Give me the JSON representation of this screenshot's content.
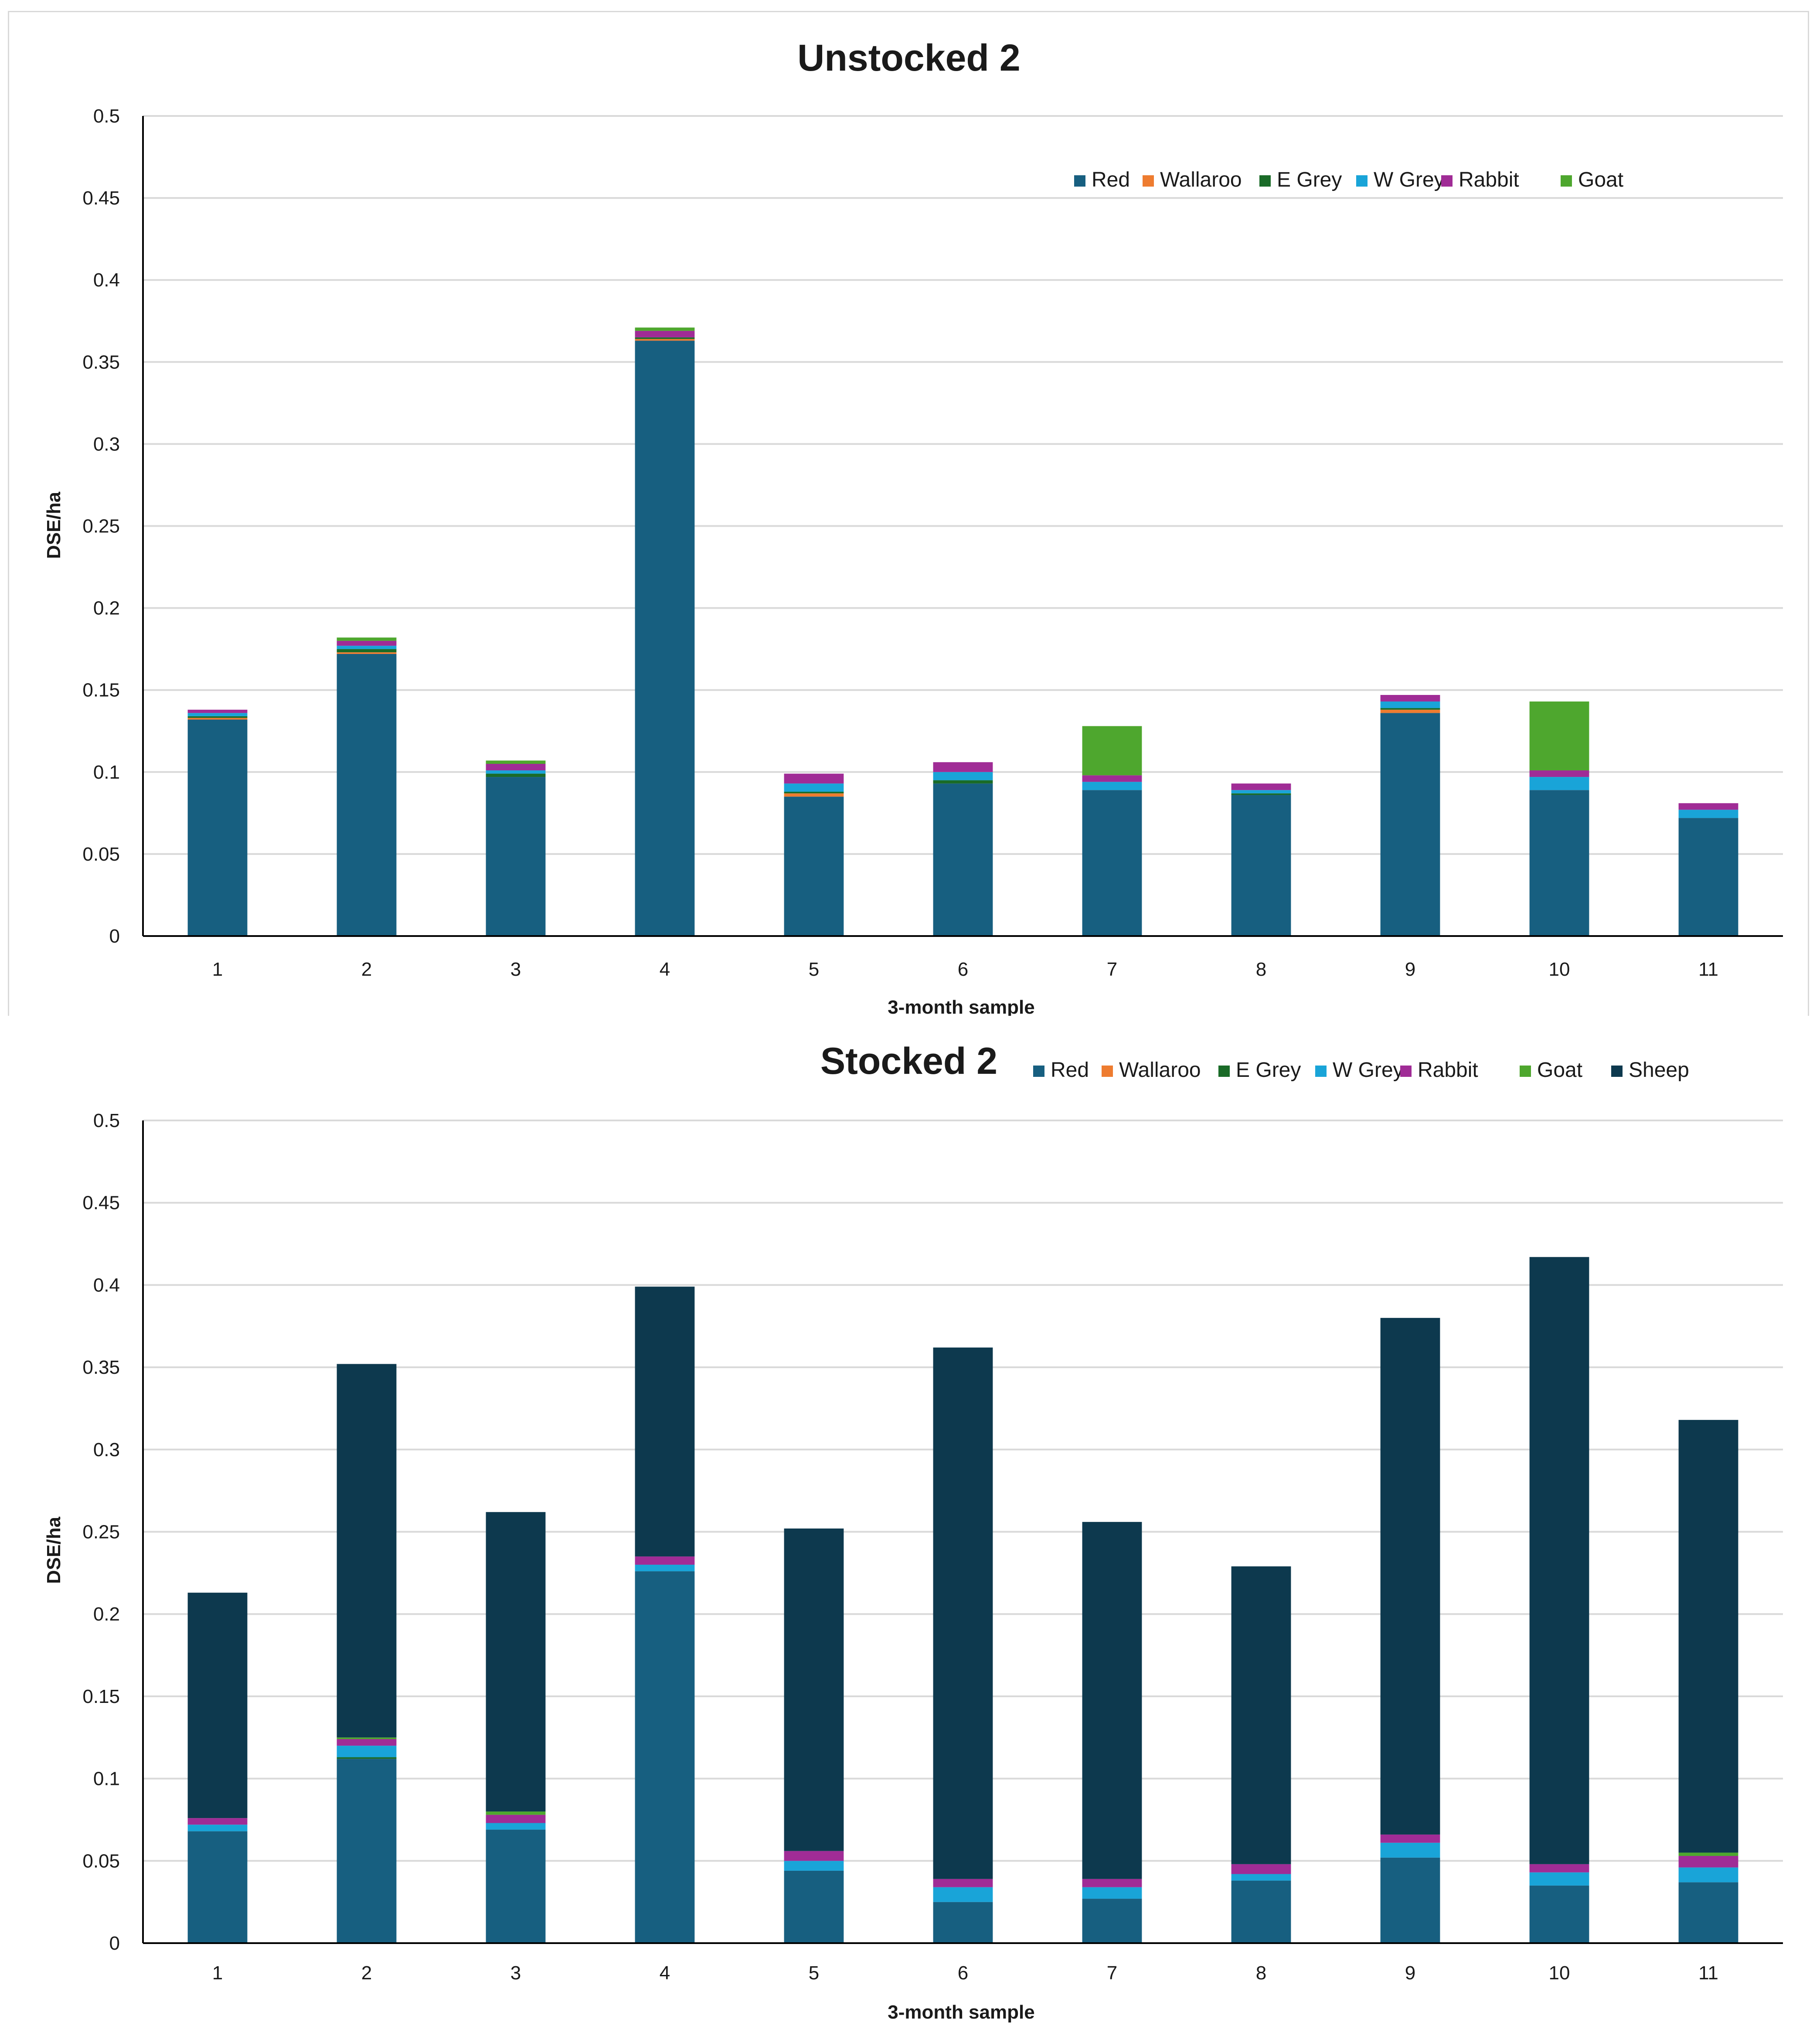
{
  "colors": {
    "Red": "#175f80",
    "Wallaroo": "#ee7c30",
    "E Grey": "#1a6b28",
    "W Grey": "#19a4d8",
    "Rabbit": "#a02c96",
    "Goat": "#4ea72e",
    "Sheep": "#0d394e",
    "grid": "#d9d9d9",
    "axis": "#000000"
  },
  "chart_data": [
    {
      "type": "bar",
      "stacked": true,
      "title": "Unstocked 2",
      "xlabel": "3-month sample",
      "ylabel": "DSE/ha",
      "ylim": [
        0,
        0.5
      ],
      "yticks": [
        "0",
        "0.05",
        "0.1",
        "0.15",
        "0.2",
        "0.25",
        "0.3",
        "0.35",
        "0.4",
        "0.45",
        "0.5"
      ],
      "categories": [
        "1",
        "2",
        "3",
        "4",
        "5",
        "6",
        "7",
        "8",
        "9",
        "10",
        "11"
      ],
      "legend_position": "top-right",
      "series": [
        {
          "name": "Red",
          "values": [
            0.132,
            0.172,
            0.097,
            0.363,
            0.085,
            0.093,
            0.089,
            0.086,
            0.136,
            0.089,
            0.072
          ]
        },
        {
          "name": "Wallaroo",
          "values": [
            0.001,
            0.001,
            0.0,
            0.001,
            0.002,
            0.0,
            0.0,
            0.0,
            0.002,
            0.0,
            0.0
          ]
        },
        {
          "name": "E Grey",
          "values": [
            0.001,
            0.002,
            0.002,
            0.001,
            0.001,
            0.002,
            0.0,
            0.001,
            0.001,
            0.0,
            0.0
          ]
        },
        {
          "name": "W Grey",
          "values": [
            0.002,
            0.002,
            0.002,
            0.0,
            0.005,
            0.005,
            0.005,
            0.002,
            0.004,
            0.008,
            0.005
          ]
        },
        {
          "name": "Rabbit",
          "values": [
            0.002,
            0.003,
            0.004,
            0.004,
            0.006,
            0.006,
            0.004,
            0.004,
            0.004,
            0.004,
            0.004
          ]
        },
        {
          "name": "Goat",
          "values": [
            0.0,
            0.002,
            0.002,
            0.002,
            0.0,
            0.0,
            0.03,
            0.0,
            0.0,
            0.042,
            0.0
          ]
        }
      ]
    },
    {
      "type": "bar",
      "stacked": true,
      "title": "Stocked 2",
      "xlabel": "3-month sample",
      "ylabel": "DSE/ha",
      "ylim": [
        0,
        0.5
      ],
      "yticks": [
        "0",
        "0.05",
        "0.1",
        "0.15",
        "0.2",
        "0.25",
        "0.3",
        "0.35",
        "0.4",
        "0.45",
        "0.5"
      ],
      "categories": [
        "1",
        "2",
        "3",
        "4",
        "5",
        "6",
        "7",
        "8",
        "9",
        "10",
        "11"
      ],
      "legend_position": "top",
      "series": [
        {
          "name": "Red",
          "values": [
            0.068,
            0.112,
            0.069,
            0.226,
            0.044,
            0.025,
            0.027,
            0.038,
            0.052,
            0.035,
            0.037
          ]
        },
        {
          "name": "Wallaroo",
          "values": [
            0.0,
            0.0,
            0.0,
            0.0,
            0.0,
            0.0,
            0.0,
            0.0,
            0.0,
            0.0,
            0.0
          ]
        },
        {
          "name": "E Grey",
          "values": [
            0.0,
            0.001,
            0.0,
            0.0,
            0.0,
            0.0,
            0.0,
            0.0,
            0.0,
            0.0,
            0.0
          ]
        },
        {
          "name": "W Grey",
          "values": [
            0.004,
            0.007,
            0.004,
            0.004,
            0.006,
            0.009,
            0.007,
            0.004,
            0.009,
            0.008,
            0.009
          ]
        },
        {
          "name": "Rabbit",
          "values": [
            0.004,
            0.004,
            0.005,
            0.005,
            0.006,
            0.005,
            0.005,
            0.006,
            0.005,
            0.005,
            0.007
          ]
        },
        {
          "name": "Goat",
          "values": [
            0.0,
            0.001,
            0.002,
            0.0,
            0.0,
            0.0,
            0.0,
            0.0,
            0.0,
            0.0,
            0.002
          ]
        },
        {
          "name": "Sheep",
          "values": [
            0.137,
            0.227,
            0.182,
            0.164,
            0.196,
            0.323,
            0.217,
            0.181,
            0.314,
            0.369,
            0.263
          ]
        }
      ]
    }
  ]
}
